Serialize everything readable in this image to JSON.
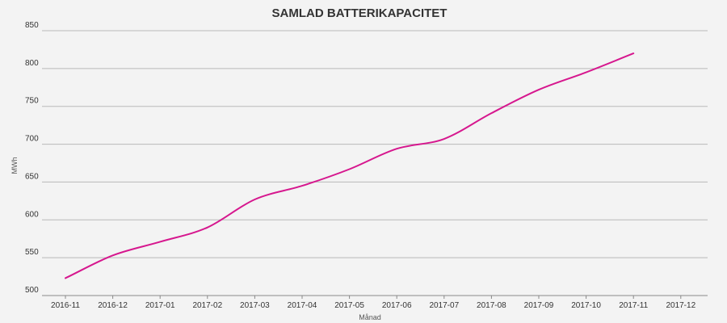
{
  "chart_data": {
    "type": "line",
    "title": "SAMLAD BATTERIKAPACITET",
    "xlabel": "Månad",
    "ylabel": "MWh",
    "categories": [
      "2016-11",
      "2016-12",
      "2017-01",
      "2017-02",
      "2017-03",
      "2017-04",
      "2017-05",
      "2017-06",
      "2017-07",
      "2017-08",
      "2017-09",
      "2017-10",
      "2017-11",
      "2017-12"
    ],
    "series": [
      {
        "color": "#d6178e",
        "values": [
          523,
          553,
          571,
          590,
          627,
          645,
          667,
          694,
          707,
          741,
          772,
          795,
          820,
          null
        ]
      }
    ],
    "ylim": [
      500,
      850
    ],
    "yticks": [
      500,
      550,
      600,
      650,
      700,
      750,
      800,
      850
    ],
    "grid": true,
    "legend": "none"
  }
}
